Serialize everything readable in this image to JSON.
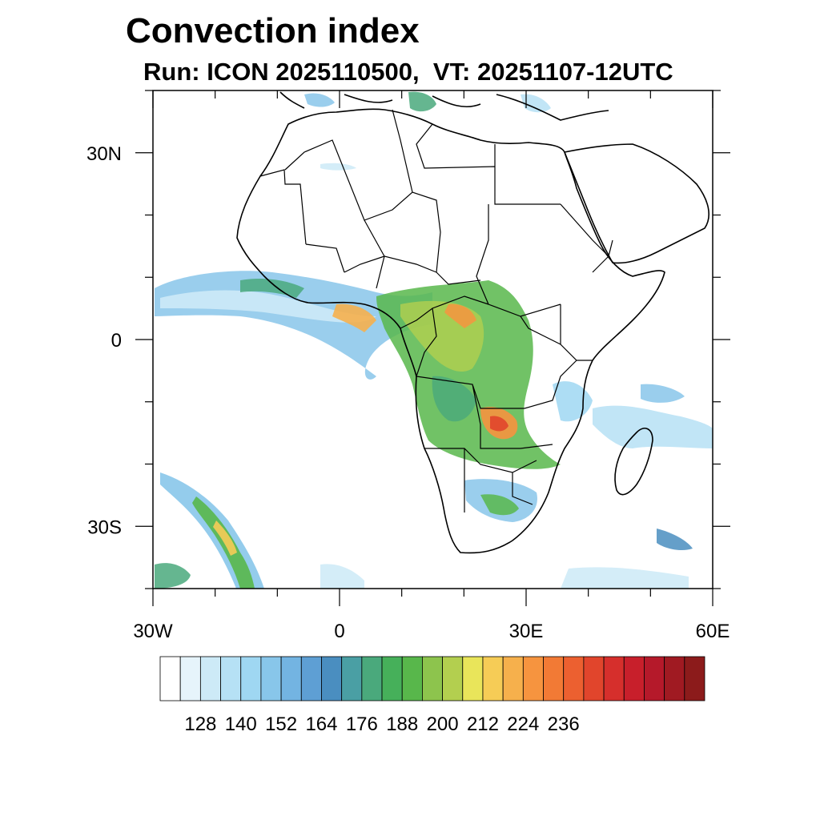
{
  "title": "Convection index",
  "subtitle": "Run: ICON 2025110500,  VT: 20251107-12UTC",
  "map": {
    "lon_range": [
      -30,
      60
    ],
    "lat_range": [
      -40,
      40
    ],
    "x_ticks": [
      {
        "lon": -30,
        "label": "30W"
      },
      {
        "lon": 0,
        "label": "0"
      },
      {
        "lon": 30,
        "label": "30E"
      },
      {
        "lon": 60,
        "label": "60E"
      }
    ],
    "y_ticks": [
      {
        "lat": 30,
        "label": "30N"
      },
      {
        "lat": 0,
        "label": "0"
      },
      {
        "lat": -30,
        "label": "30S"
      }
    ],
    "minor_lon_step": 10,
    "minor_lat_step": 10
  },
  "colorbar": {
    "colors": [
      "#ffffff",
      "#e6f4fb",
      "#cdeaf7",
      "#b6e1f5",
      "#9fd7f2",
      "#88c6ea",
      "#73b4e2",
      "#5e9fd4",
      "#4a8ec0",
      "#4a9fa4",
      "#4aa97c",
      "#46b05a",
      "#58b74b",
      "#8dc44d",
      "#b3cf4f",
      "#e9e55a",
      "#f6cc56",
      "#f6b04c",
      "#f6943f",
      "#f27a35",
      "#ec6030",
      "#e1452c",
      "#d62f2c",
      "#c81f2b",
      "#b5192a",
      "#a01a22",
      "#8c1b1b"
    ],
    "labels": [
      "128",
      "140",
      "152",
      "164",
      "176",
      "188",
      "200",
      "212",
      "224",
      "236"
    ],
    "label_start_index": 2,
    "label_every": 2
  }
}
